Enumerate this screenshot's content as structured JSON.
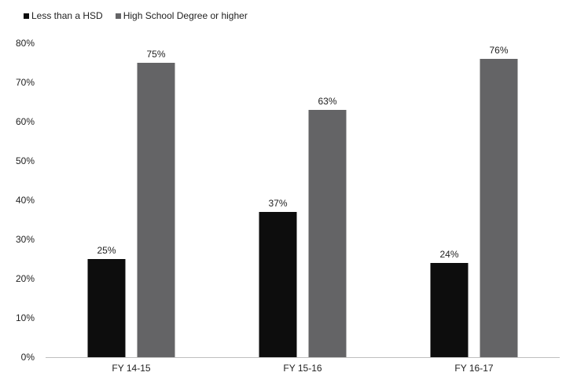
{
  "chart_data": {
    "type": "bar",
    "categories": [
      "FY 14-15",
      "FY 15-16",
      "FY 16-17"
    ],
    "series": [
      {
        "name": "Less than a HSD",
        "values": [
          25,
          37,
          24
        ],
        "labels": [
          "25%",
          "37%",
          "24%"
        ],
        "color": "#0d0d0d"
      },
      {
        "name": "High School Degree or higher",
        "values": [
          75,
          63,
          76
        ],
        "labels": [
          "75%",
          "63%",
          "76%"
        ],
        "color": "#646466"
      }
    ],
    "y_ticks": [
      "0%",
      "10%",
      "20%",
      "30%",
      "40%",
      "50%",
      "60%",
      "70%",
      "80%"
    ],
    "ylim": [
      0,
      80
    ],
    "grid": false,
    "legend_position": "top-left"
  }
}
